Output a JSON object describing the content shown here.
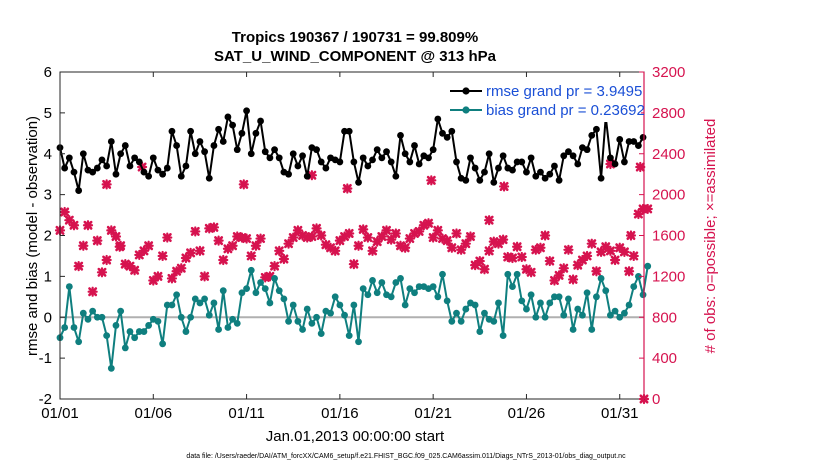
{
  "chart_data": {
    "type": "line",
    "title": "Tropics 190367 / 190731 = 99.809%",
    "subtitle": "SAT_U_WIND_COMPONENT @ 313 hPa",
    "xlabel": "Jan.01,2013 00:00:00 start",
    "ylabel_left": "rmse and bias (model - observation)",
    "ylabel_right": "# of obs: o=possible; ×=assimilated",
    "footnote": "data file: /Users/raeder/DAI/ATM_forcXX/CAM6_setup/f.e21.FHIST_BGC.f09_025.CAM6assim.011/Diags_NTrS_2013-01/obs_diag_output.nc",
    "xlim": [
      1,
      32.3
    ],
    "ylim_left": [
      -2,
      6
    ],
    "ylim_right": [
      0,
      3200
    ],
    "x_tick_values": [
      1,
      6,
      11,
      16,
      21,
      26,
      31
    ],
    "x_tick_labels": [
      "01/01",
      "01/06",
      "01/11",
      "01/16",
      "01/21",
      "01/26",
      "01/31"
    ],
    "y_left_ticks": [
      "-2",
      "-1",
      "0",
      "1",
      "2",
      "3",
      "4",
      "5",
      "6"
    ],
    "y_right_ticks": [
      "0",
      "400",
      "800",
      "1200",
      "1600",
      "2000",
      "2400",
      "2800",
      "3200"
    ],
    "zero_line": 0,
    "colors": {
      "rmse": "#000000",
      "bias": "#0f7f7f",
      "obs": "#d6134f",
      "legend_text": "#1a4fd6",
      "zero_line": "#b0b0b0"
    },
    "series": [
      {
        "name": "rmse grand pr = 3.9495",
        "axis": "left",
        "marker": "circle",
        "x_start": 1,
        "x_step": 0.25,
        "values": [
          4.15,
          3.65,
          3.9,
          3.55,
          3.1,
          4.0,
          3.6,
          3.55,
          3.65,
          3.85,
          3.7,
          4.3,
          3.5,
          4.0,
          4.2,
          3.7,
          3.9,
          3.8,
          3.55,
          3.45,
          3.9,
          3.6,
          3.5,
          3.65,
          4.55,
          4.2,
          3.45,
          3.7,
          4.55,
          4.0,
          4.3,
          4.05,
          3.4,
          4.2,
          4.6,
          4.3,
          4.9,
          4.7,
          4.1,
          4.5,
          5.05,
          4.0,
          4.5,
          4.8,
          4.05,
          3.9,
          4.1,
          3.9,
          3.55,
          3.5,
          4.0,
          3.7,
          3.95,
          3.45,
          4.15,
          4.1,
          3.8,
          3.65,
          3.9,
          3.85,
          3.8,
          4.55,
          4.55,
          3.8,
          3.3,
          3.9,
          3.7,
          3.85,
          4.1,
          3.9,
          4.05,
          3.8,
          3.45,
          4.45,
          4.0,
          3.8,
          4.2,
          3.75,
          3.95,
          3.9,
          4.1,
          4.85,
          4.5,
          4.4,
          4.55,
          3.8,
          3.4,
          3.35,
          3.9,
          3.65,
          3.35,
          3.55,
          4.0,
          3.3,
          3.65,
          3.95,
          3.65,
          3.6,
          3.8,
          3.8,
          3.55,
          3.9,
          3.45,
          3.55,
          3.4,
          3.5,
          3.7,
          3.35,
          3.95,
          4.05,
          3.95,
          3.75,
          4.15,
          4.1,
          4.45,
          4.6,
          3.4,
          4.9,
          3.9,
          3.75,
          4.35,
          3.8,
          4.3,
          4.3,
          4.2,
          4.4
        ]
      },
      {
        "name": "bias grand pr = 0.23692",
        "axis": "left",
        "marker": "circle",
        "x_start": 1,
        "x_step": 0.25,
        "values": [
          -0.5,
          -0.25,
          0.75,
          -0.25,
          -0.6,
          0.1,
          -0.05,
          0.15,
          0.0,
          0.0,
          -0.45,
          -1.25,
          -0.2,
          0.15,
          -0.75,
          -0.35,
          -0.5,
          -0.35,
          -0.35,
          -0.2,
          -0.05,
          -0.1,
          -0.65,
          0.3,
          0.3,
          0.55,
          0.0,
          -0.35,
          0.0,
          0.45,
          0.35,
          0.45,
          0.05,
          0.35,
          -0.3,
          0.65,
          -0.25,
          -0.05,
          -0.15,
          0.6,
          0.7,
          1.15,
          0.6,
          0.85,
          0.7,
          0.35,
          0.95,
          0.65,
          0.45,
          -0.1,
          0.3,
          -0.1,
          -0.3,
          0.2,
          -0.15,
          0.0,
          -0.4,
          0.15,
          0.1,
          0.5,
          0.3,
          0.05,
          -0.45,
          0.3,
          -0.6,
          0.7,
          0.55,
          0.9,
          0.6,
          0.85,
          0.55,
          0.5,
          0.85,
          0.95,
          0.3,
          0.7,
          0.6,
          0.75,
          0.75,
          0.7,
          0.75,
          0.5,
          1.05,
          0.4,
          -0.1,
          0.1,
          -0.1,
          0.2,
          0.35,
          0.3,
          -0.35,
          0.1,
          -0.05,
          -0.1,
          0.35,
          -0.45,
          1.05,
          0.75,
          1.05,
          0.4,
          0.2,
          0.55,
          0.0,
          0.35,
          0.0,
          0.35,
          0.5,
          0.5,
          0.05,
          0.45,
          -0.3,
          0.2,
          0.05,
          0.6,
          -0.3,
          0.5,
          0.95,
          0.65,
          0.05,
          0.15,
          0.0,
          0.1,
          0.3,
          0.75,
          1.0,
          0.55,
          1.25
        ]
      },
      {
        "name": "obs assimilated",
        "axis": "right",
        "marker": "x",
        "x_start": 1,
        "x_step": 0.25,
        "values": [
          1650,
          1830,
          1750,
          1700,
          1300,
          1500,
          1700,
          1050,
          1550,
          1240,
          1360,
          1650,
          1590,
          1500,
          1320,
          1300,
          1260,
          1410,
          1450,
          1500,
          1160,
          1200,
          1400,
          1580,
          1180,
          1250,
          1280,
          1380,
          1430,
          1640,
          1450,
          1200,
          1670,
          1680,
          1550,
          1360,
          1470,
          1500,
          1590,
          1580,
          1570,
          1400,
          1500,
          1570,
          1190,
          1200,
          1300,
          1450,
          1370,
          1520,
          1580,
          1650,
          1600,
          1580,
          1590,
          1670,
          1600,
          1510,
          1480,
          1450,
          1550,
          1590,
          1620,
          1320,
          1500,
          1660,
          1580,
          1450,
          1540,
          1590,
          1650,
          1560,
          1620,
          1500,
          1480,
          1570,
          1620,
          1640,
          1700,
          1720,
          1580,
          1650,
          1570,
          1550,
          1480,
          1620,
          1460,
          1520,
          1590,
          1310,
          1350,
          1270,
          1450,
          1540,
          1520,
          1560,
          1390,
          1380,
          1490,
          1390,
          1270,
          1240,
          1460,
          1480,
          1600,
          1350,
          1160,
          1210,
          1280,
          1460,
          1170,
          1310,
          1360,
          1400,
          1520,
          1250,
          1440,
          1490,
          1450,
          1360,
          1480,
          1440,
          1250,
          1400,
          1810,
          1860,
          1860
        ]
      }
    ],
    "obs_extra_points": [
      {
        "x": 3.5,
        "y": 2100
      },
      {
        "x": 5.4,
        "y": 2270
      },
      {
        "x": 10.85,
        "y": 2100
      },
      {
        "x": 14.5,
        "y": 2190
      },
      {
        "x": 16.4,
        "y": 2060
      },
      {
        "x": 20.9,
        "y": 2140
      },
      {
        "x": 24.8,
        "y": 2080
      },
      {
        "x": 30.5,
        "y": 2300
      },
      {
        "x": 32.1,
        "y": 2270
      },
      {
        "x": 31.6,
        "y": 1600
      },
      {
        "x": 4.2,
        "y": 1490
      },
      {
        "x": 24.0,
        "y": 1750
      }
    ],
    "obs_zero_point": {
      "x": 32.3,
      "y": 0
    }
  }
}
